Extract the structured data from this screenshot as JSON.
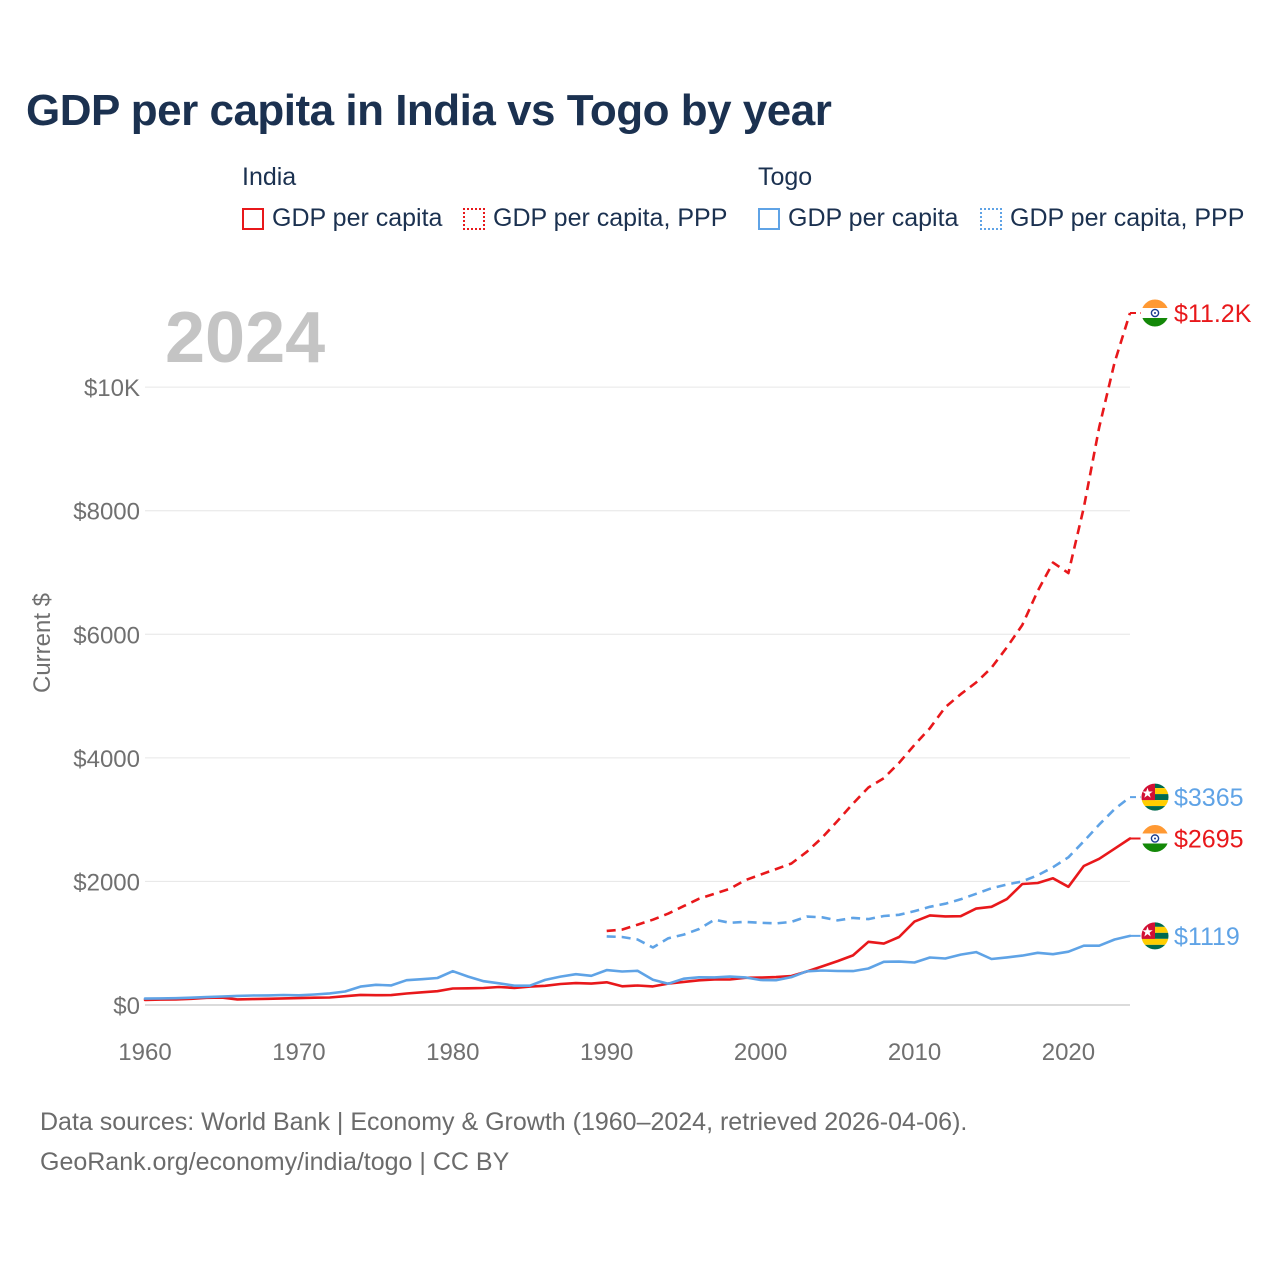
{
  "title": "GDP per capita in India vs Togo by year",
  "legend": {
    "groups": [
      {
        "name": "India",
        "items": [
          {
            "label": "GDP per capita",
            "style": "solid",
            "color": "#e8181b"
          },
          {
            "label": "GDP per capita, PPP",
            "style": "dotted",
            "color": "#e8181b"
          }
        ]
      },
      {
        "name": "Togo",
        "items": [
          {
            "label": "GDP per capita",
            "style": "solid",
            "color": "#5fa3e6"
          },
          {
            "label": "GDP per capita, PPP",
            "style": "dotted",
            "color": "#5fa3e6"
          }
        ]
      }
    ]
  },
  "year_label": "2024",
  "footer": {
    "line1": "Data sources: World Bank | Economy & Growth (1960–2024, retrieved 2026-04-06).",
    "line2": "GeoRank.org/economy/india/togo | CC BY"
  },
  "chart_data": {
    "type": "line",
    "title": "GDP per capita in India vs Togo by year",
    "xlabel": "",
    "ylabel": "Current $",
    "xlim": [
      1960,
      2024
    ],
    "ylim": [
      0,
      11200
    ],
    "x_ticks": [
      1960,
      1970,
      1980,
      1990,
      2000,
      2010,
      2020
    ],
    "y_ticks": [
      0,
      2000,
      4000,
      6000,
      8000,
      10000
    ],
    "y_tick_labels": [
      "$0",
      "$2000",
      "$4000",
      "$6000",
      "$8000",
      "$10K"
    ],
    "grid": true,
    "series": [
      {
        "name": "India GDP per capita",
        "country": "India",
        "flag": "india",
        "color": "#e8181b",
        "dash": "solid",
        "end_label": "$2695",
        "x": [
          1960,
          1961,
          1962,
          1963,
          1964,
          1965,
          1966,
          1967,
          1968,
          1969,
          1970,
          1971,
          1972,
          1973,
          1974,
          1975,
          1976,
          1977,
          1978,
          1979,
          1980,
          1981,
          1982,
          1983,
          1984,
          1985,
          1986,
          1987,
          1988,
          1989,
          1990,
          1991,
          1992,
          1993,
          1994,
          1995,
          1996,
          1997,
          1998,
          1999,
          2000,
          2001,
          2002,
          2003,
          2004,
          2005,
          2006,
          2007,
          2008,
          2009,
          2010,
          2011,
          2012,
          2013,
          2014,
          2015,
          2016,
          2017,
          2018,
          2019,
          2020,
          2021,
          2022,
          2023,
          2024
        ],
        "values": [
          83,
          87,
          91,
          101,
          116,
          119,
          90,
          96,
          100,
          107,
          112,
          118,
          122,
          143,
          163,
          158,
          161,
          186,
          206,
          224,
          267,
          271,
          275,
          292,
          277,
          297,
          310,
          340,
          354,
          346,
          368,
          303,
          316,
          301,
          346,
          374,
          400,
          414,
          413,
          441,
          443,
          451,
          470,
          543,
          624,
          710,
          802,
          1023,
          993,
          1101,
          1350,
          1450,
          1434,
          1438,
          1560,
          1590,
          1714,
          1958,
          1974,
          2050,
          1913,
          2250,
          2366,
          2530,
          2695
        ]
      },
      {
        "name": "India GDP per capita, PPP",
        "country": "India",
        "flag": "india",
        "color": "#e8181b",
        "dash": "dashed",
        "end_label": "$11.2K",
        "x": [
          1990,
          1991,
          1992,
          1993,
          1994,
          1995,
          1996,
          1997,
          1998,
          1999,
          2000,
          2001,
          2002,
          2003,
          2004,
          2005,
          2006,
          2007,
          2008,
          2009,
          2010,
          2011,
          2012,
          2013,
          2014,
          2015,
          2016,
          2017,
          2018,
          2019,
          2020,
          2021,
          2022,
          2023,
          2024
        ],
        "values": [
          1200,
          1220,
          1300,
          1380,
          1480,
          1600,
          1720,
          1800,
          1880,
          2020,
          2110,
          2200,
          2290,
          2480,
          2710,
          2980,
          3260,
          3520,
          3670,
          3920,
          4210,
          4480,
          4820,
          5030,
          5220,
          5460,
          5790,
          6150,
          6700,
          7160,
          6990,
          8050,
          9350,
          10400,
          11200
        ]
      },
      {
        "name": "Togo GDP per capita",
        "country": "Togo",
        "flag": "togo",
        "color": "#5fa3e6",
        "dash": "solid",
        "end_label": "$1119",
        "x": [
          1960,
          1961,
          1962,
          1963,
          1964,
          1965,
          1966,
          1967,
          1968,
          1969,
          1970,
          1971,
          1972,
          1973,
          1974,
          1975,
          1976,
          1977,
          1978,
          1979,
          1980,
          1981,
          1982,
          1983,
          1984,
          1985,
          1986,
          1987,
          1988,
          1989,
          1990,
          1991,
          1992,
          1993,
          1994,
          1995,
          1996,
          1997,
          1998,
          1999,
          2000,
          2001,
          2002,
          2003,
          2004,
          2005,
          2006,
          2007,
          2008,
          2009,
          2010,
          2011,
          2012,
          2013,
          2014,
          2015,
          2016,
          2017,
          2018,
          2019,
          2020,
          2021,
          2022,
          2023,
          2024
        ],
        "values": [
          104,
          107,
          110,
          118,
          128,
          137,
          148,
          153,
          155,
          162,
          157,
          170,
          187,
          219,
          298,
          327,
          318,
          402,
          417,
          437,
          547,
          460,
          386,
          351,
          312,
          313,
          406,
          459,
          498,
          472,
          565,
          543,
          553,
          410,
          345,
          425,
          448,
          447,
          459,
          447,
          405,
          402,
          452,
          546,
          558,
          550,
          548,
          590,
          700,
          703,
          688,
          768,
          752,
          815,
          856,
          745,
          770,
          800,
          845,
          823,
          862,
          959,
          959,
          1060,
          1119
        ]
      },
      {
        "name": "Togo GDP per capita, PPP",
        "country": "Togo",
        "flag": "togo",
        "color": "#5fa3e6",
        "dash": "dashed",
        "end_label": "$3365",
        "x": [
          1990,
          1991,
          1992,
          1993,
          1994,
          1995,
          1996,
          1997,
          1998,
          1999,
          2000,
          2001,
          2002,
          2003,
          2004,
          2005,
          2006,
          2007,
          2008,
          2009,
          2010,
          2011,
          2012,
          2013,
          2014,
          2015,
          2016,
          2017,
          2018,
          2019,
          2020,
          2021,
          2022,
          2023,
          2024
        ],
        "values": [
          1110,
          1100,
          1060,
          930,
          1080,
          1140,
          1230,
          1380,
          1330,
          1345,
          1330,
          1320,
          1345,
          1430,
          1420,
          1370,
          1410,
          1390,
          1440,
          1460,
          1520,
          1590,
          1640,
          1710,
          1800,
          1890,
          1950,
          2000,
          2100,
          2230,
          2390,
          2650,
          2920,
          3170,
          3365
        ]
      }
    ]
  }
}
